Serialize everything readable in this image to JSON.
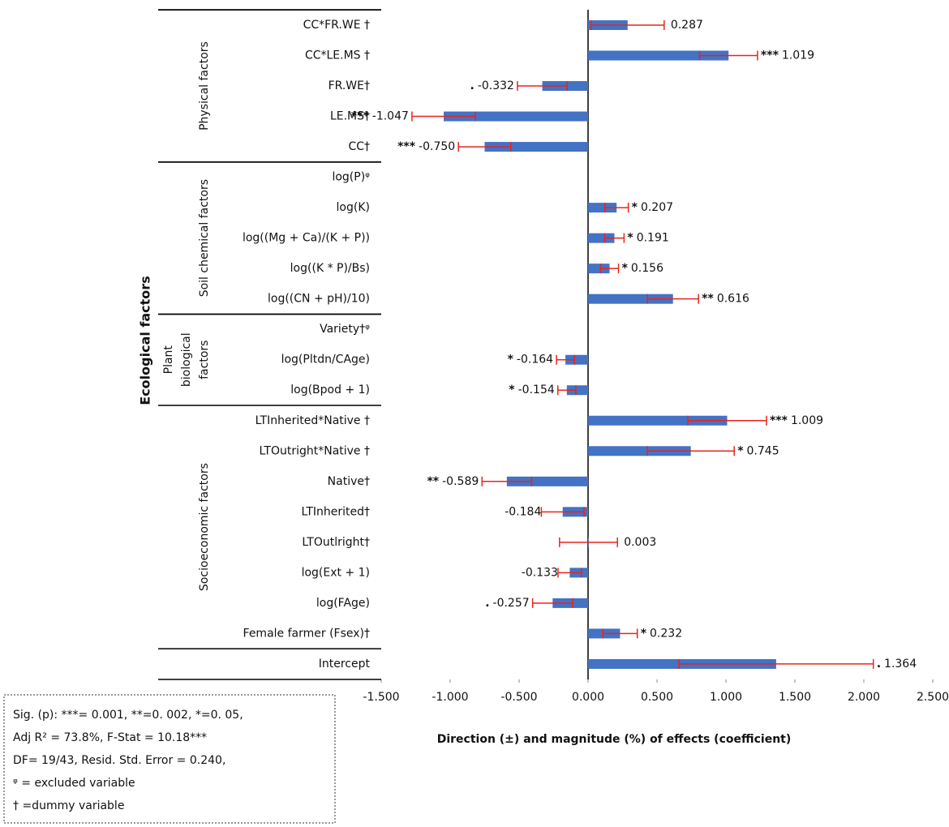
{
  "chart_data": {
    "type": "bar",
    "orientation": "horizontal",
    "title_y": "Ecological factors",
    "xlabel": "Direction (±) and magnitude (%) of effects (coefficient)",
    "categories": [
      "CC*FR.WE †",
      "CC*LE.MS †",
      "FR.WE†",
      "LE.MS†",
      "CC†",
      "log(P)ᵠ",
      "log(K)",
      "log((Mg + Ca)/(K + P))",
      "log((K * P)/Bs)",
      "log((CN + pH)/10)",
      "Variety†ᵠ",
      "log(Pltdn/CAge)",
      "log(Bpod + 1)",
      "LTInherited*Native †",
      "LTOutright*Native †",
      "Native†",
      "LTInherited†",
      "LTOutlright†",
      "log(Ext + 1)",
      "log(FAge)",
      "Female farmer (Fsex)†",
      "Intercept"
    ],
    "values": [
      0.287,
      1.019,
      -0.332,
      -1.047,
      -0.75,
      null,
      0.207,
      0.191,
      0.156,
      0.616,
      null,
      -0.164,
      -0.154,
      1.009,
      0.745,
      -0.589,
      -0.184,
      0.003,
      -0.133,
      -0.257,
      0.232,
      1.364
    ],
    "value_labels": [
      "0.287",
      "1.019",
      "-0.332",
      "-1.047",
      "-0.750",
      null,
      "0.207",
      "0.191",
      "0.156",
      "0.616",
      null,
      "-0.164",
      "-0.154",
      "1.009",
      "0.745",
      "-0.589",
      "-0.184",
      "0.003",
      "-0.133",
      "-0.257",
      "0.232",
      "1.364"
    ],
    "errors": [
      0.265,
      0.21,
      0.18,
      0.23,
      0.19,
      null,
      0.085,
      0.07,
      0.065,
      0.185,
      null,
      0.065,
      0.065,
      0.285,
      0.315,
      0.18,
      0.155,
      0.21,
      0.085,
      0.145,
      0.125,
      0.705
    ],
    "significance": [
      null,
      "***",
      ".",
      "***",
      "***",
      null,
      "*",
      "*",
      "*",
      "**",
      null,
      "*",
      "*",
      "***",
      "*",
      "**",
      null,
      null,
      null,
      ".",
      "*",
      "."
    ],
    "groups": [
      {
        "lines": [
          "Physical factors"
        ],
        "start": 0,
        "end": 4
      },
      {
        "lines": [
          "Soil chemical factors"
        ],
        "start": 5,
        "end": 9
      },
      {
        "lines": [
          "Plant",
          "biological",
          "factors"
        ],
        "start": 10,
        "end": 12
      },
      {
        "lines": [
          "Socioeconomic factors"
        ],
        "start": 13,
        "end": 20
      }
    ],
    "color": "#4472c4",
    "error_color": "#e8241c",
    "xlim": [
      -1.5,
      2.5
    ],
    "xticks": [
      {
        "value": -1.5,
        "label": "-1.500"
      },
      {
        "value": -1,
        "label": "-1.000"
      },
      {
        "value": -0.5,
        "label": "-0.500"
      },
      {
        "value": 0,
        "label": "0.000"
      },
      {
        "value": 0.5,
        "label": "0.500"
      },
      {
        "value": 1,
        "label": "1.000"
      },
      {
        "value": 1.5,
        "label": "1.500"
      },
      {
        "value": 2,
        "label": "2.000"
      },
      {
        "value": 2.5,
        "label": "2.500"
      }
    ],
    "notes": [
      "Sig. (p): ***= 0.001, **=0. 002, *=0. 05,",
      "Adj R² = 73.8%, F-Stat = 10.18***",
      "DF=  19/43, Resid. Std. Error = 0.240,",
      "ᵠ = excluded variable",
      "† =dummy variable"
    ]
  }
}
